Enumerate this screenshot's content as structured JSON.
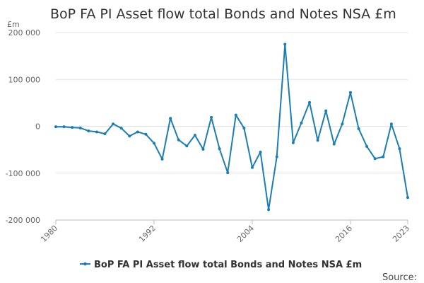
{
  "chart_data": {
    "type": "line",
    "title": "BoP FA PI Asset flow total Bonds and Notes NSA £m",
    "y_unit": "£m",
    "xlabel": "",
    "ylabel": "",
    "x": [
      1980,
      1981,
      1982,
      1983,
      1984,
      1985,
      1986,
      1987,
      1988,
      1989,
      1990,
      1991,
      1992,
      1993,
      1994,
      1995,
      1996,
      1997,
      1998,
      1999,
      2000,
      2001,
      2002,
      2003,
      2004,
      2005,
      2006,
      2007,
      2008,
      2009,
      2010,
      2011,
      2012,
      2013,
      2014,
      2015,
      2016,
      2017,
      2018,
      2019,
      2020,
      2021,
      2022,
      2023
    ],
    "x_tick_labels": [
      "1980",
      "1992",
      "2004",
      "2016",
      "2023"
    ],
    "y_ticks": [
      200000,
      100000,
      0,
      -100000,
      -200000
    ],
    "y_tick_labels": [
      "200 000",
      "100 000",
      "0",
      "-100 000",
      "-200 000"
    ],
    "ylim": [
      -200000,
      200000
    ],
    "grid": true,
    "series": [
      {
        "name": "BoP FA PI Asset flow total Bonds and Notes NSA £m",
        "color": "#1a7db5",
        "values": [
          -1000,
          -1000,
          -2500,
          -3500,
          -10000,
          -12000,
          -16000,
          5000,
          -4000,
          -21000,
          -12000,
          -17000,
          -36000,
          -70000,
          17000,
          -29000,
          -42000,
          -19000,
          -49000,
          19000,
          -48000,
          -99000,
          24000,
          -4000,
          -88000,
          -55000,
          -178000,
          -65000,
          175000,
          -35000,
          7000,
          51000,
          -30000,
          33000,
          -38000,
          5000,
          72000,
          -5000,
          -43000,
          -69000,
          -65000,
          5000,
          -48000,
          -152000
        ]
      }
    ],
    "legend": {
      "position": "bottom",
      "label": "BoP FA PI Asset flow total Bonds and Notes NSA £m"
    },
    "source_label": "Source:"
  }
}
